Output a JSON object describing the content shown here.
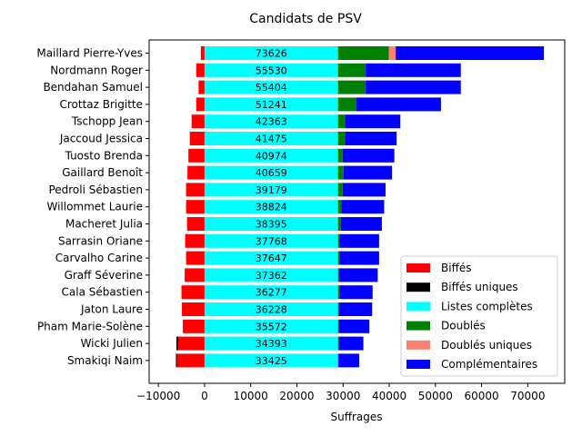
{
  "chart_data": {
    "type": "bar",
    "orientation": "horizontal",
    "stacked": true,
    "title": "Candidats de PSV",
    "xlabel": "Suffrages",
    "ylabel": "",
    "xlim": [
      -12000,
      78000
    ],
    "xticks": [
      -10000,
      0,
      10000,
      20000,
      30000,
      40000,
      50000,
      60000,
      70000
    ],
    "xtick_labels": [
      "−10000",
      "0",
      "10000",
      "20000",
      "30000",
      "40000",
      "50000",
      "60000",
      "70000"
    ],
    "legend_position": "lower-right",
    "categories": [
      "Maillard Pierre-Yves",
      "Nordmann Roger",
      "Bendahan Samuel",
      "Crottaz Brigitte",
      "Tschopp Jean",
      "Jaccoud Jessica",
      "Tuosto Brenda",
      "Gaillard Benoît",
      "Pedroli Sébastien",
      "Willommet Laurie",
      "Macheret Julia",
      "Sarrasin Oriane",
      "Carvalho Carine",
      "Graff Séverine",
      "Cala Sébastien",
      "Jaton Laure",
      "Pham Marie-Solène",
      "Wicki Julien",
      "Smakiqi Naim"
    ],
    "totals": [
      73626,
      55530,
      55404,
      51241,
      42363,
      41475,
      40974,
      40659,
      39179,
      38824,
      38395,
      37768,
      37647,
      37362,
      36277,
      36228,
      35572,
      34393,
      33425
    ],
    "listes_completes": 28900,
    "series": [
      {
        "name": "Biffés",
        "color": "#ff0000",
        "values": [
          -800,
          -1800,
          -1300,
          -1800,
          -2800,
          -3200,
          -3500,
          -3700,
          -4000,
          -4000,
          -3800,
          -4200,
          -4000,
          -4300,
          -5000,
          -4900,
          -4700,
          -5700,
          -6000
        ]
      },
      {
        "name": "Biffés uniques",
        "color": "#000000",
        "values": [
          0,
          0,
          0,
          0,
          0,
          0,
          0,
          0,
          0,
          0,
          0,
          0,
          0,
          0,
          0,
          0,
          0,
          -400,
          -200
        ]
      },
      {
        "name": "Listes complètes",
        "color": "#00ffff",
        "values": [
          28900,
          28900,
          28900,
          28900,
          28900,
          28900,
          28900,
          28900,
          28900,
          28900,
          28900,
          28900,
          28900,
          28900,
          28900,
          28900,
          28900,
          28900,
          28900
        ]
      },
      {
        "name": "Doublés",
        "color": "#008000",
        "values": [
          11000,
          6000,
          6000,
          4000,
          1500,
          1500,
          1000,
          1200,
          1000,
          700,
          600,
          300,
          300,
          200,
          300,
          200,
          200,
          200,
          100
        ]
      },
      {
        "name": "Doublés uniques",
        "color": "#fa8072",
        "values": [
          1500,
          0,
          0,
          0,
          0,
          0,
          0,
          0,
          0,
          0,
          0,
          0,
          0,
          0,
          0,
          0,
          0,
          0,
          0
        ]
      },
      {
        "name": "Complémentaires",
        "color": "#0000ff",
        "values": [
          32100,
          20600,
          20600,
          18300,
          12000,
          11200,
          11200,
          10500,
          9300,
          9300,
          8900,
          8600,
          8600,
          8400,
          7200,
          7200,
          6600,
          5300,
          4500
        ]
      }
    ]
  }
}
